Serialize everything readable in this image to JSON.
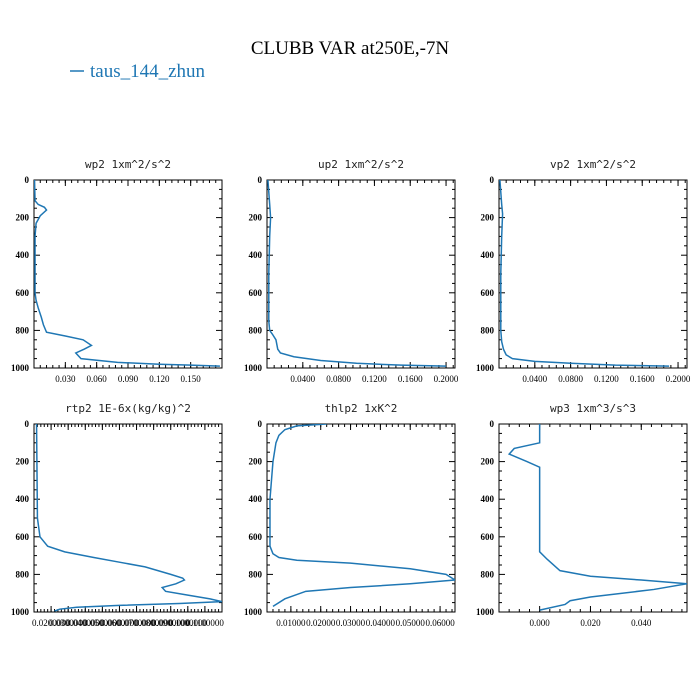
{
  "chart_data": {
    "type": "line",
    "title": "CLUBB VAR at250E,-7N",
    "legend": {
      "placement": "top-left",
      "entries": [
        {
          "name": "taus_144_zhun",
          "color": "#1f77b4"
        }
      ]
    },
    "panels": [
      {
        "title": "wp2  1xm^2/s^2",
        "xlim": [
          0,
          0.18
        ],
        "ylim": [
          1000,
          0
        ],
        "x_ticks": [
          0.03,
          0.06,
          0.09,
          0.12,
          0.15
        ],
        "x_tick_labels": [
          "0.030",
          "0.060",
          "0.090",
          "0.120",
          "0.150"
        ],
        "y_ticks": [
          0,
          200,
          400,
          600,
          800,
          1000
        ],
        "y_tick_labels": [
          "0",
          "200",
          "400",
          "600",
          "800",
          "1000"
        ],
        "series": [
          {
            "name": "taus_144_zhun",
            "x": [
              0.0005,
              0.001,
              0.004,
              0.01,
              0.012,
              0.006,
              0.002,
              0.001,
              0.001,
              0.002,
              0.004,
              0.007,
              0.009,
              0.012,
              0.03,
              0.047,
              0.055,
              0.048,
              0.04,
              0.045,
              0.08,
              0.12,
              0.15,
              0.178
            ],
            "y": [
              0,
              110,
              130,
              145,
              160,
              190,
              230,
              300,
              600,
              640,
              680,
              730,
              770,
              810,
              830,
              850,
              880,
              900,
              920,
              950,
              970,
              980,
              985,
              990
            ]
          }
        ]
      },
      {
        "title": "up2  1xm^2/s^2",
        "xlim": [
          0,
          0.21
        ],
        "ylim": [
          1000,
          0
        ],
        "x_ticks": [
          0.04,
          0.08,
          0.12,
          0.16,
          0.2
        ],
        "x_tick_labels": [
          "0.0400",
          "0.0800",
          "0.1200",
          "0.1600",
          "0.2000"
        ],
        "y_ticks": [
          0,
          200,
          400,
          600,
          800,
          1000
        ],
        "y_tick_labels": [
          "0",
          "200",
          "400",
          "600",
          "800",
          "1000"
        ],
        "series": [
          {
            "name": "taus_144_zhun",
            "x": [
              0.001,
              0.003,
              0.004,
              0.003,
              0.002,
              0.002,
              0.003,
              0.006,
              0.01,
              0.012,
              0.015,
              0.03,
              0.06,
              0.1,
              0.15,
              0.2
            ],
            "y": [
              0,
              130,
              200,
              300,
              500,
              750,
              800,
              820,
              850,
              900,
              920,
              940,
              960,
              975,
              985,
              990
            ]
          }
        ]
      },
      {
        "title": "vp2  1xm^2/s^2",
        "xlim": [
          0,
          0.21
        ],
        "ylim": [
          1000,
          0
        ],
        "x_ticks": [
          0.04,
          0.08,
          0.12,
          0.16,
          0.2
        ],
        "x_tick_labels": [
          "0.0400",
          "0.0800",
          "0.1200",
          "0.1600",
          "0.2000"
        ],
        "y_ticks": [
          0,
          200,
          400,
          600,
          800,
          1000
        ],
        "y_tick_labels": [
          "0",
          "200",
          "400",
          "600",
          "800",
          "1000"
        ],
        "series": [
          {
            "name": "taus_144_zhun",
            "x": [
              0.001,
              0.003,
              0.004,
              0.003,
              0.002,
              0.002,
              0.003,
              0.005,
              0.008,
              0.015,
              0.04,
              0.08,
              0.13,
              0.19
            ],
            "y": [
              0,
              130,
              180,
              300,
              500,
              800,
              860,
              900,
              930,
              950,
              965,
              975,
              985,
              990
            ]
          }
        ]
      },
      {
        "title": "rtp2  1E-6x(kg/kg)^2",
        "xlim": [
          0.01,
          0.12
        ],
        "ylim": [
          1000,
          0
        ],
        "x_ticks": [
          0.02,
          0.03,
          0.04,
          0.05,
          0.06,
          0.07,
          0.08,
          0.09,
          0.1,
          0.11
        ],
        "x_tick_labels": [
          "0.0200000",
          "0.0300000",
          "0.0400000",
          "0.0500000",
          "0.0600000",
          "0.0700000",
          "0.0800000",
          "0.0900000",
          "0.1000000",
          "0.1100000"
        ],
        "y_ticks": [
          0,
          200,
          400,
          600,
          800,
          1000
        ],
        "y_tick_labels": [
          "0",
          "200",
          "400",
          "600",
          "800",
          "1000"
        ],
        "series": [
          {
            "name": "taus_144_zhun",
            "x": [
              0.0115,
              0.012,
              0.0135,
              0.018,
              0.028,
              0.045,
              0.06,
              0.075,
              0.09,
              0.097,
              0.098,
              0.093,
              0.085,
              0.087,
              0.1,
              0.113,
              0.12,
              0.095,
              0.06,
              0.035,
              0.025,
              0.022
            ],
            "y": [
              0,
              500,
              600,
              650,
              680,
              710,
              735,
              760,
              800,
              820,
              830,
              850,
              870,
              890,
              910,
              930,
              945,
              955,
              965,
              975,
              985,
              995
            ]
          }
        ]
      },
      {
        "title": "thlp2  1xK^2",
        "xlim": [
          0.002,
          0.065
        ],
        "ylim": [
          1000,
          0
        ],
        "x_ticks": [
          0.01,
          0.02,
          0.03,
          0.04,
          0.05,
          0.06
        ],
        "x_tick_labels": [
          "0.01000",
          "0.02000",
          "0.03000",
          "0.04000",
          "0.05000",
          "0.06000"
        ],
        "y_ticks": [
          0,
          200,
          400,
          600,
          800,
          1000
        ],
        "y_tick_labels": [
          "0",
          "200",
          "400",
          "600",
          "800",
          "1000"
        ],
        "series": [
          {
            "name": "taus_144_zhun",
            "x": [
              0.022,
              0.012,
              0.008,
              0.006,
              0.005,
              0.004,
              0.003,
              0.003,
              0.004,
              0.006,
              0.012,
              0.03,
              0.05,
              0.062,
              0.065,
              0.05,
              0.03,
              0.015,
              0.008,
              0.004
            ],
            "y": [
              0,
              10,
              30,
              60,
              100,
              200,
              400,
              650,
              690,
              710,
              725,
              740,
              770,
              800,
              830,
              850,
              870,
              890,
              930,
              970
            ]
          }
        ]
      },
      {
        "title": "wp3  1xm^3/s^3",
        "xlim": [
          -0.016,
          0.058
        ],
        "ylim": [
          1000,
          0
        ],
        "x_ticks": [
          0,
          0.02,
          0.04
        ],
        "x_tick_labels": [
          "0.000",
          "0.020",
          "0.040"
        ],
        "y_ticks": [
          0,
          200,
          400,
          600,
          800,
          1000
        ],
        "y_tick_labels": [
          "0",
          "200",
          "400",
          "600",
          "800",
          "1000"
        ],
        "series": [
          {
            "name": "taus_144_zhun",
            "x": [
              0.0,
              0.0,
              -0.01,
              -0.012,
              -0.005,
              0.0,
              0.0,
              0.0,
              0.0,
              0.003,
              0.008,
              0.02,
              0.04,
              0.058,
              0.045,
              0.02,
              0.012,
              0.01,
              0.0
            ],
            "y": [
              0,
              100,
              130,
              160,
              200,
              230,
              400,
              600,
              680,
              720,
              780,
              810,
              830,
              850,
              880,
              920,
              940,
              960,
              990
            ]
          }
        ]
      }
    ]
  }
}
